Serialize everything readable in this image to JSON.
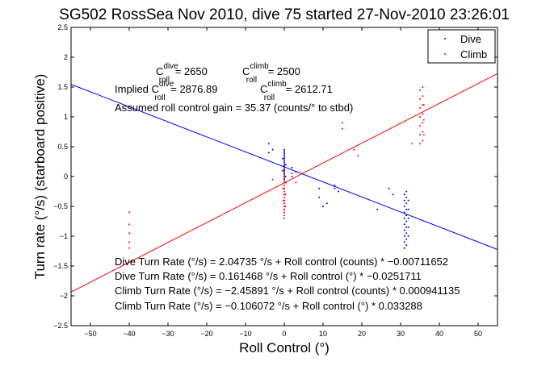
{
  "chart_data": {
    "type": "scatter",
    "title": "SG502 RossSea Nov 2010, dive 75 started 27-Nov-2010 23:26:01",
    "xlabel": "Roll Control (°)",
    "ylabel": "Turn rate (°/s) (starboard positive)",
    "xlim": [
      -55,
      55
    ],
    "ylim": [
      -2.5,
      2.5
    ],
    "xticks": [
      -50,
      -40,
      -30,
      -20,
      -10,
      0,
      10,
      20,
      30,
      40,
      50
    ],
    "yticks": [
      -2.5,
      -2,
      -1.5,
      -1,
      -0.5,
      0,
      0.5,
      1,
      1.5,
      2,
      2.5
    ],
    "xtick_labels": [
      "−50",
      "−40",
      "−30",
      "−20",
      "−10",
      "0",
      "10",
      "20",
      "30",
      "40",
      "50"
    ],
    "ytick_labels": [
      "−2.5",
      "−2",
      "−1.5",
      "−1",
      "−0.5",
      "0",
      "0.5",
      "1",
      "1.5",
      "2",
      "2.5"
    ],
    "grid": false,
    "legend_position": "top-right",
    "series": [
      {
        "name": "Dive",
        "color": "#0000ff",
        "marker": "point",
        "points": [
          [
            0,
            0.45
          ],
          [
            0,
            0.42
          ],
          [
            0,
            0.39
          ],
          [
            0,
            0.36
          ],
          [
            0,
            0.33
          ],
          [
            0,
            0.3
          ],
          [
            0,
            0.27
          ],
          [
            0,
            0.24
          ],
          [
            0,
            0.21
          ],
          [
            0,
            0.18
          ],
          [
            0,
            0.15
          ],
          [
            0,
            0.12
          ],
          [
            0,
            0.09
          ],
          [
            0,
            0.06
          ],
          [
            0,
            0.03
          ],
          [
            0,
            0.0
          ],
          [
            0,
            -0.03
          ],
          [
            0,
            -0.06
          ],
          [
            0,
            -0.1
          ],
          [
            0,
            -0.2
          ],
          [
            0,
            -0.3
          ],
          [
            0,
            -0.45
          ],
          [
            0,
            -0.55
          ],
          [
            -0.4,
            0.3
          ],
          [
            -0.4,
            0.1
          ],
          [
            0.4,
            0.2
          ],
          [
            0.4,
            -0.1
          ],
          [
            0.3,
            0.0
          ],
          [
            -4,
            0.55
          ],
          [
            -4,
            0.4
          ],
          [
            -3,
            0.45
          ],
          [
            2,
            0.15
          ],
          [
            2,
            0.0
          ],
          [
            3,
            0.08
          ],
          [
            9,
            -0.2
          ],
          [
            9,
            -0.35
          ],
          [
            10,
            -0.5
          ],
          [
            11,
            -0.45
          ],
          [
            13,
            -0.15
          ],
          [
            13,
            -0.2
          ],
          [
            14,
            -0.25
          ],
          [
            24,
            -0.55
          ],
          [
            27,
            -0.2
          ],
          [
            28,
            -0.3
          ],
          [
            31,
            -0.3
          ],
          [
            31,
            -0.4
          ],
          [
            31,
            -0.5
          ],
          [
            31,
            -0.6
          ],
          [
            31,
            -0.7
          ],
          [
            31,
            -0.8
          ],
          [
            31,
            -0.9
          ],
          [
            31,
            -1.0
          ],
          [
            31,
            -1.1
          ],
          [
            31,
            -1.2
          ],
          [
            31.5,
            -0.25
          ],
          [
            31.5,
            -0.35
          ],
          [
            31.5,
            -0.45
          ],
          [
            31.5,
            -0.55
          ],
          [
            31.5,
            -0.65
          ],
          [
            31.5,
            -0.75
          ],
          [
            31.5,
            -0.85
          ],
          [
            31.5,
            -0.95
          ],
          [
            31.5,
            -1.05
          ],
          [
            31.5,
            -1.15
          ],
          [
            32,
            -0.4
          ],
          [
            32,
            -0.55
          ],
          [
            32,
            -0.7
          ],
          [
            32,
            -0.85
          ],
          [
            32,
            -1.0
          ]
        ]
      },
      {
        "name": "Climb",
        "color": "#ff0000",
        "marker": "point",
        "points": [
          [
            -40,
            -0.6
          ],
          [
            -40,
            -0.8
          ],
          [
            -40,
            -0.95
          ],
          [
            -40,
            -1.1
          ],
          [
            -40,
            -1.2
          ],
          [
            0,
            0.15
          ],
          [
            0,
            0.1
          ],
          [
            0,
            0.05
          ],
          [
            0,
            0.0
          ],
          [
            0,
            -0.05
          ],
          [
            0,
            -0.1
          ],
          [
            0,
            -0.15
          ],
          [
            0,
            -0.2
          ],
          [
            0,
            -0.25
          ],
          [
            0,
            -0.3
          ],
          [
            0,
            -0.35
          ],
          [
            0,
            -0.4
          ],
          [
            0,
            -0.45
          ],
          [
            0,
            -0.5
          ],
          [
            0,
            -0.55
          ],
          [
            0,
            -0.6
          ],
          [
            0,
            -0.65
          ],
          [
            0,
            -0.7
          ],
          [
            -0.3,
            -0.2
          ],
          [
            -0.3,
            -0.4
          ],
          [
            0.3,
            -0.1
          ],
          [
            0.3,
            -0.3
          ],
          [
            0.3,
            -0.5
          ],
          [
            -3,
            -0.05
          ],
          [
            2,
            0.05
          ],
          [
            3,
            -0.1
          ],
          [
            15,
            0.8
          ],
          [
            15,
            0.9
          ],
          [
            18,
            0.45
          ],
          [
            19,
            0.35
          ],
          [
            35,
            0.55
          ],
          [
            35,
            0.7
          ],
          [
            35,
            0.85
          ],
          [
            35,
            1.0
          ],
          [
            35,
            1.15
          ],
          [
            35,
            1.3
          ],
          [
            35,
            1.45
          ],
          [
            35.7,
            0.6
          ],
          [
            35.7,
            0.75
          ],
          [
            35.7,
            0.9
          ],
          [
            35.7,
            1.05
          ],
          [
            35.7,
            1.2
          ],
          [
            35.7,
            1.35
          ],
          [
            35.7,
            1.5
          ],
          [
            36,
            0.7
          ],
          [
            36,
            0.95
          ],
          [
            36,
            1.2
          ],
          [
            33,
            0.55
          ]
        ]
      }
    ],
    "fit_lines": [
      {
        "series": "Dive",
        "color": "#0000ff",
        "slope": -0.0251711,
        "intercept": 0.161468
      },
      {
        "series": "Climb",
        "color": "#ff0000",
        "slope": 0.033288,
        "intercept": -0.106072
      }
    ],
    "annotations": {
      "cdive_prefix": "C",
      "cdive_sup": "dive",
      "cdive_sub": "roll",
      "cdive_value": " = 2650",
      "cclimb_prefix": "C",
      "cclimb_sup": "climb",
      "cclimb_sub": "roll",
      "cclimb_value": " = 2500",
      "implied_prefix": "Implied C",
      "implied_dive_sup": "dive",
      "implied_dive_sub": "roll",
      "implied_dive_value": " = 2876.89",
      "implied_climb_prefix": "C",
      "implied_climb_sup": "climb",
      "implied_climb_sub": "roll",
      "implied_climb_value": " = 2612.71",
      "gain": "Assumed roll control gain = 35.37 (counts/° to stbd)",
      "fit_lines_text": [
        "Dive Turn Rate (°/s) = 2.04735 °/s + Roll control (counts) * −0.00711652",
        "Dive Turn Rate (°/s) = 0.161468 °/s + Roll control (°) * −0.0251711",
        "Climb Turn Rate (°/s) = −2.45891 °/s + Roll control (counts) * 0.000941135",
        "Climb Turn Rate (°/s) = −0.106072 °/s + Roll control (°) * 0.033288"
      ]
    }
  }
}
